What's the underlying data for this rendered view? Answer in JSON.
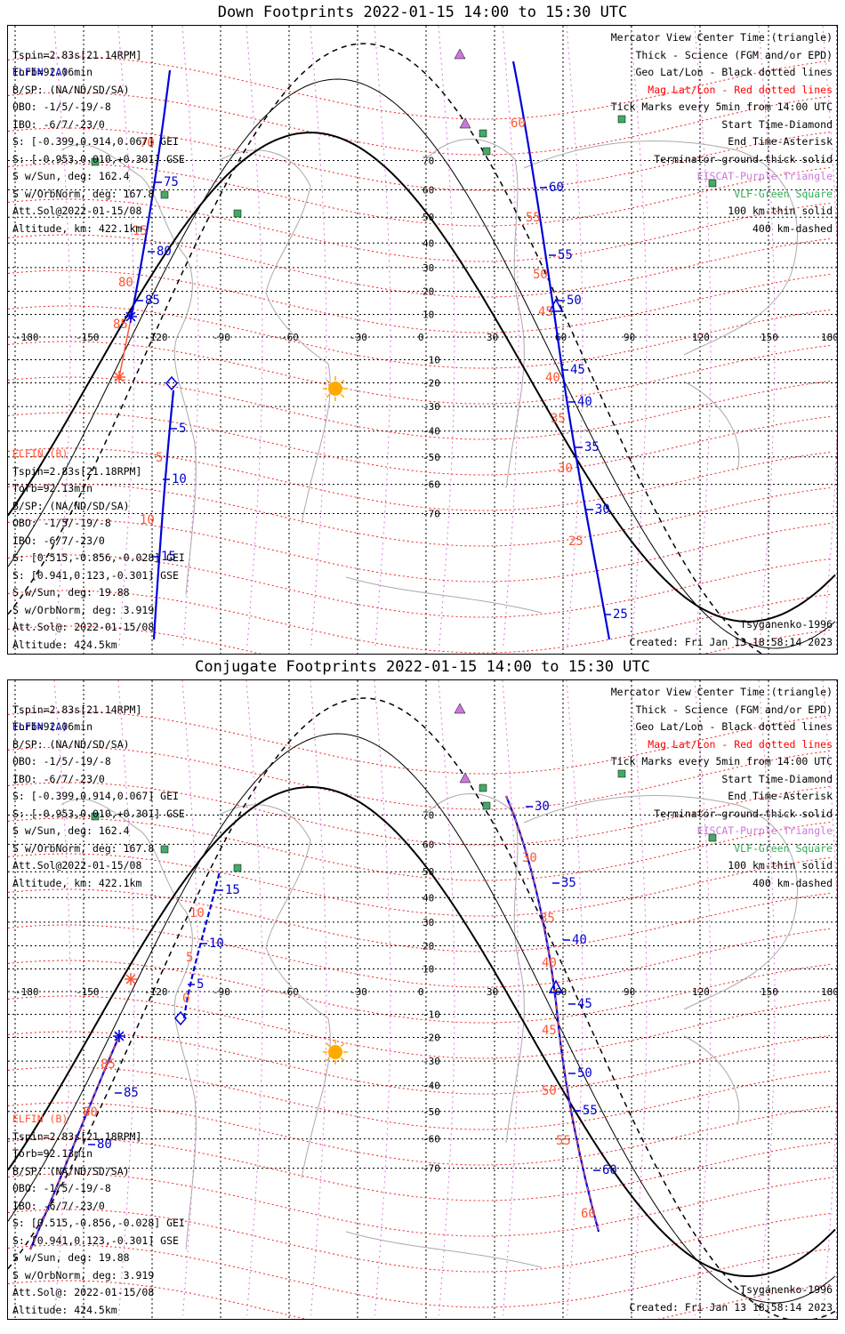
{
  "panels": [
    {
      "title": "Down Footprints 2022-01-15 14:00 to 15:30 UTC",
      "elfin_a": {
        "label": "ELFIN (A)",
        "lines": [
          "Tspin=2.83s[21.14RPM]",
          "Torb=92.06min",
          "B/SP: (NA/ND/SD/SA)",
          "OBO: -1/5/-19/-8",
          "IBO: -6/7/-23/0",
          "S: [-0.399,0.914,0.067] GEI",
          "S: [-0.953,0.010,+0.301] GSE",
          "S w/Sun, deg: 162.4",
          "S w/OrbNorm, deg: 167.8",
          "Att.Sol@2022-01-15/08",
          "Altitude, km: 422.1km"
        ]
      },
      "elfin_b": {
        "label": "ELFIN (B)",
        "lines": [
          "Tspin=2.83s[21.18RPM]",
          "Torb=92.13min",
          "B/SP: (NA/ND/SD/SA)",
          "OBO: -1/5/-19/-8",
          "IBO: -6/7/-23/0",
          "S: [0.515,-0.856,-0.028] GEI",
          "S: [0.941,0.123,-0.301] GSE",
          "S w/Sun, deg: 19.88",
          "S w/OrbNorm, deg: 3.919",
          "Att.Sol@: 2022-01-15/08",
          "Altitude: 424.5km"
        ]
      },
      "legend": [
        {
          "text": "Mercator View Center Time (triangle)",
          "color": "blk"
        },
        {
          "text": "Thick - Science (FGM and/or EPD)",
          "color": "blk"
        },
        {
          "text": "Geo Lat/Lon - Black dotted lines",
          "color": "blk"
        },
        {
          "text": "Mag Lat/Lon - Red dotted lines",
          "color": "red"
        },
        {
          "text": "Tick Marks every 5min from 14:00 UTC",
          "color": "blk"
        },
        {
          "text": "Start Time-Diamond",
          "color": "blk"
        },
        {
          "text": "End Time-Asterisk",
          "color": "blk"
        },
        {
          "text": "Terminator-ground-thick solid",
          "color": "blk"
        },
        {
          "text": "EISCAT-Purple Triangle",
          "color": "purple"
        },
        {
          "text": "VLF-Green Square",
          "color": "green"
        },
        {
          "text": "100 km-thin solid",
          "color": "blk"
        },
        {
          "text": "400 km-dashed",
          "color": "blk"
        }
      ],
      "model": "Tsyganenko-1996",
      "created": "Created: Fri Jan 13 18:58:14 2023",
      "lon_ticks": [
        "-180",
        "-150",
        "-120",
        "-90",
        "-60",
        "-30",
        "0",
        "30",
        "60",
        "90",
        "120",
        "150",
        "180"
      ],
      "lat_ticks": [
        "70",
        "60",
        "50",
        "40",
        "30",
        "20",
        "10",
        "0",
        "-10",
        "-20",
        "-30",
        "-40",
        "-50",
        "-60",
        "-70"
      ],
      "a_tick_labels": [
        [
          "75",
          175,
          180
        ],
        [
          "80",
          167,
          258
        ],
        [
          "85",
          154,
          313
        ],
        [
          "60",
          608,
          186
        ],
        [
          "55",
          618,
          262
        ],
        [
          "50",
          628,
          313
        ],
        [
          "45",
          632,
          391
        ],
        [
          "40",
          640,
          427
        ],
        [
          "35",
          648,
          478
        ],
        [
          "30",
          660,
          548
        ],
        [
          "25",
          680,
          666
        ]
      ],
      "a_orange_labels": [
        [
          "70",
          148,
          136
        ],
        [
          "80",
          124,
          293
        ],
        [
          "85",
          118,
          340
        ],
        [
          "60",
          565,
          114
        ],
        [
          "55",
          582,
          220
        ],
        [
          "50",
          590,
          284
        ],
        [
          "45",
          596,
          326
        ],
        [
          "40",
          604,
          400
        ],
        [
          "35",
          610,
          446
        ],
        [
          "30",
          618,
          502
        ],
        [
          "25",
          630,
          584
        ]
      ],
      "b_tick_labels": [
        [
          "5",
          192,
          457
        ],
        [
          "10",
          184,
          514
        ],
        [
          "15",
          172,
          601
        ]
      ],
      "b_orange_labels": [
        [
          "15",
          140,
          235
        ],
        [
          "5",
          166,
          490
        ],
        [
          "10",
          148,
          560
        ],
        [
          "15",
          118,
          722
        ]
      ]
    },
    {
      "title": "Conjugate Footprints 2022-01-15 14:00 to 15:30 UTC",
      "elfin_a": {
        "label": "ELFIN (A)",
        "lines": [
          "Tspin=2.83s[21.14RPM]",
          "Torb=92.06min",
          "B/SP: (NA/ND/SD/SA)",
          "OBO: -1/5/-19/-8",
          "IBO: -6/7/-23/0",
          "S: [-0.399,0.914,0.067] GEI",
          "S: [-0.953,0.010,+0.301] GSE",
          "S w/Sun, deg: 162.4",
          "S w/OrbNorm, deg: 167.8",
          "Att.Sol@2022-01-15/08",
          "Altitude, km: 422.1km"
        ]
      },
      "elfin_b": {
        "label": "ELFIN (B)",
        "lines": [
          "Tspin=2.83s[21.18RPM]",
          "Torb=92.13min",
          "B/SP: (NA/ND/SD/SA)",
          "OBO: -1/5/-19/-8",
          "IBO: -6/7/-23/0",
          "S: [0.515,-0.856,-0.028] GEI",
          "S: [0.941,0.123,-0.301] GSE",
          "S w/Sun, deg: 19.88",
          "S w/OrbNorm, deg: 3.919",
          "Att.Sol@: 2022-01-15/08",
          "Altitude: 424.5km"
        ]
      },
      "legend": [
        {
          "text": "Mercator View Center Time (triangle)",
          "color": "blk"
        },
        {
          "text": "Thick - Science (FGM and/or EPD)",
          "color": "blk"
        },
        {
          "text": "Geo Lat/Lon - Black dotted lines",
          "color": "blk"
        },
        {
          "text": "Mag Lat/Lon - Red dotted lines",
          "color": "red"
        },
        {
          "text": "Tick Marks every 5min from 14:00 UTC",
          "color": "blk"
        },
        {
          "text": "Start Time-Diamond",
          "color": "blk"
        },
        {
          "text": "End Time-Asterisk",
          "color": "blk"
        },
        {
          "text": "Terminator-ground-thick solid",
          "color": "blk"
        },
        {
          "text": "EISCAT-Purple Triangle",
          "color": "purple"
        },
        {
          "text": "VLF-Green Square",
          "color": "green"
        },
        {
          "text": "100 km-thin solid",
          "color": "blk"
        },
        {
          "text": "400 km-dashed",
          "color": "blk"
        }
      ],
      "model": "Tsyganenko-1996",
      "created": "Created: Fri Jan 13 18:58:14 2023",
      "lon_ticks": [
        "-180",
        "-150",
        "-120",
        "-90",
        "-60",
        "-30",
        "0",
        "30",
        "60",
        "90",
        "120",
        "150",
        "180"
      ],
      "lat_ticks": [
        "70",
        "60",
        "50",
        "40",
        "30",
        "20",
        "10",
        "0",
        "-10",
        "-20",
        "-30",
        "-40",
        "-50",
        "-60",
        "-70"
      ],
      "a_tick_labels": [
        [
          "30",
          592,
          146
        ],
        [
          "35",
          622,
          232
        ],
        [
          "40",
          634,
          296
        ],
        [
          "45",
          640,
          368
        ],
        [
          "50",
          640,
          446
        ],
        [
          "55",
          646,
          488
        ],
        [
          "60",
          668,
          555
        ]
      ],
      "a_orange_labels": [
        [
          "30",
          578,
          204
        ],
        [
          "35",
          598,
          272
        ],
        [
          "40",
          600,
          322
        ],
        [
          "45",
          600,
          398
        ],
        [
          "50",
          600,
          466
        ],
        [
          "55",
          616,
          522
        ],
        [
          "60",
          644,
          604
        ]
      ],
      "b_tick_labels": [
        [
          "15",
          244,
          240
        ],
        [
          "10",
          226,
          300
        ],
        [
          "5",
          212,
          346
        ],
        [
          "85",
          130,
          468
        ],
        [
          "80",
          100,
          526
        ]
      ],
      "b_orange_labels": [
        [
          "10",
          204,
          266
        ],
        [
          "5",
          200,
          316
        ],
        [
          "0",
          196,
          362
        ],
        [
          "85",
          104,
          436
        ],
        [
          "80",
          84,
          490
        ]
      ]
    }
  ]
}
